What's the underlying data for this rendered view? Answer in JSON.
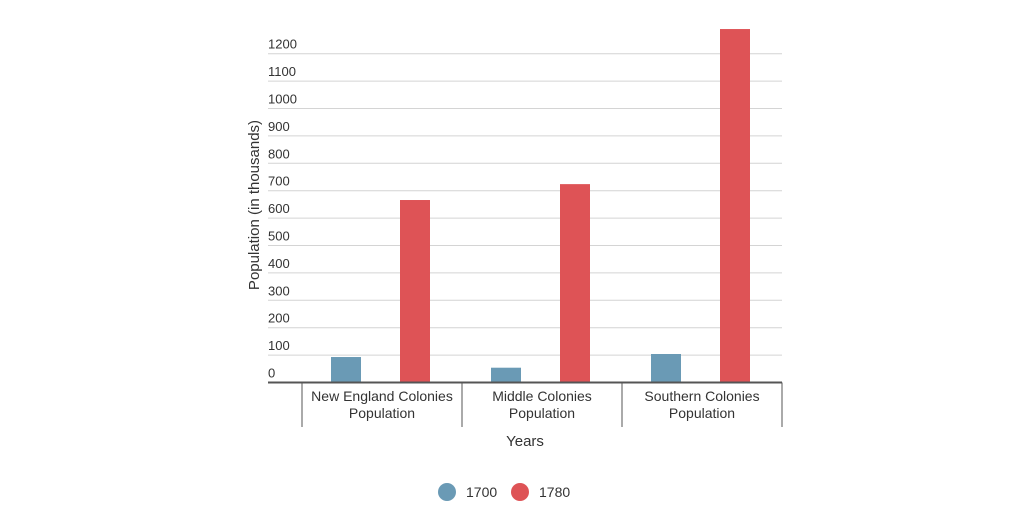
{
  "chart_data": {
    "type": "bar",
    "title": "",
    "xlabel": "Years",
    "ylabel": "Population (in thousands)",
    "ylim": [
      0,
      1250
    ],
    "yticks": [
      0,
      100,
      200,
      300,
      400,
      500,
      600,
      700,
      800,
      900,
      1000,
      1100,
      1200
    ],
    "categories": [
      [
        "New England Colonies",
        "Population"
      ],
      [
        "Middle Colonies",
        "Population"
      ],
      [
        "Southern Colonies",
        "Population"
      ]
    ],
    "series": [
      {
        "name": "1700",
        "color": "#6A9AB5",
        "values": [
          93,
          54,
          104
        ]
      },
      {
        "name": "1780",
        "color": "#DE5356",
        "values": [
          666,
          724,
          1290
        ]
      }
    ],
    "grid": true,
    "legend_position": "bottom-center"
  }
}
